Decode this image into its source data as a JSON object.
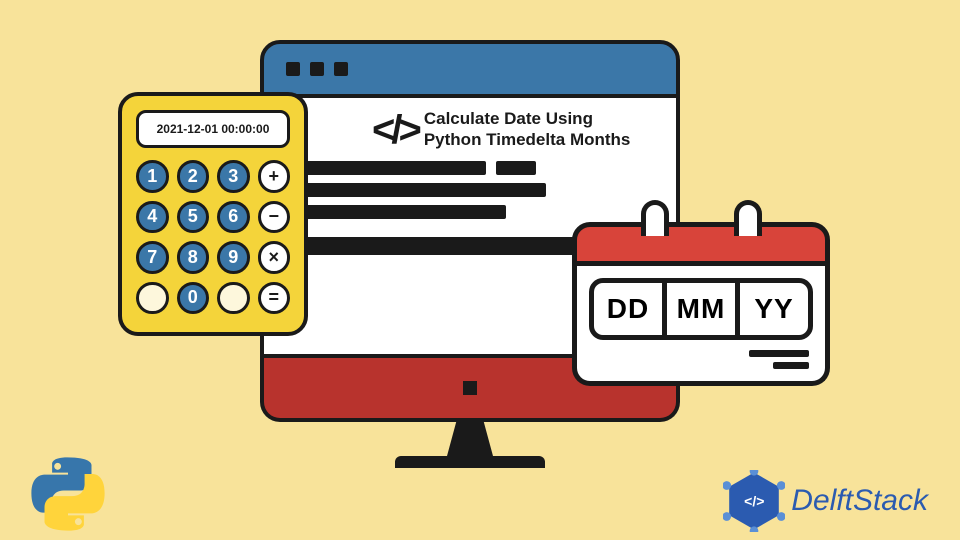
{
  "background_color": "#f8e39a",
  "monitor": {
    "top_color": "#3b77a8",
    "base_color": "#b8332d",
    "title_line1": "Calculate Date Using",
    "title_line2": "Python Timedelta Months",
    "code_glyph": "</>"
  },
  "calculator": {
    "body_color": "#f4d43a",
    "screen_text": "2021-12-01 00:00:00",
    "buttons": [
      {
        "label": "1",
        "cls": "num"
      },
      {
        "label": "2",
        "cls": "num"
      },
      {
        "label": "3",
        "cls": "num"
      },
      {
        "label": "+",
        "cls": "op"
      },
      {
        "label": "4",
        "cls": "num"
      },
      {
        "label": "5",
        "cls": "num"
      },
      {
        "label": "6",
        "cls": "num"
      },
      {
        "label": "−",
        "cls": "op"
      },
      {
        "label": "7",
        "cls": "num"
      },
      {
        "label": "8",
        "cls": "num"
      },
      {
        "label": "9",
        "cls": "num"
      },
      {
        "label": "×",
        "cls": "op"
      },
      {
        "label": "",
        "cls": "wht"
      },
      {
        "label": "0",
        "cls": "num"
      },
      {
        "label": "",
        "cls": "wht"
      },
      {
        "label": "=",
        "cls": "op"
      }
    ]
  },
  "calendar": {
    "top_color": "#d8443a",
    "cells": [
      "DD",
      "MM",
      "YY"
    ]
  },
  "brand": {
    "name": "DelftStack",
    "badge_glyph": "</>",
    "badge_color": "#2b5bb0"
  }
}
